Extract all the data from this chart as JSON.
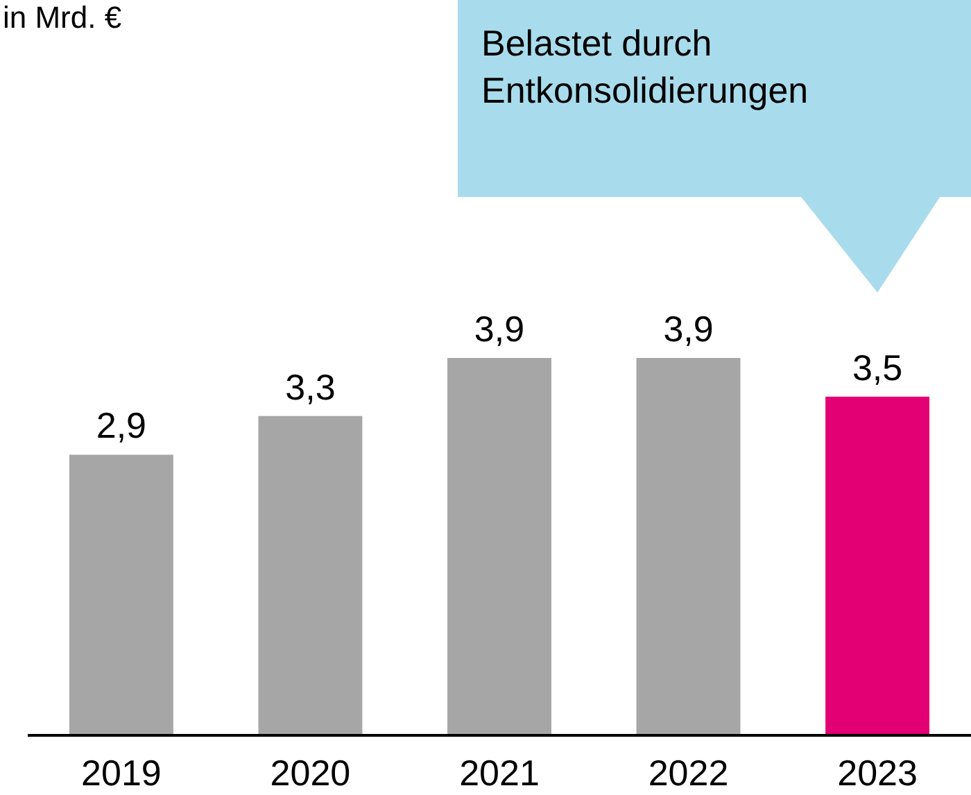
{
  "chart_data": {
    "type": "bar",
    "title": "in Mrd. €",
    "categories": [
      "2019",
      "2020",
      "2021",
      "2022",
      "2023"
    ],
    "values": [
      2.9,
      3.3,
      3.9,
      3.9,
      3.5
    ],
    "colors": [
      "#a6a6a6",
      "#a6a6a6",
      "#a6a6a6",
      "#a6a6a6",
      "#e20074"
    ],
    "value_labels": [
      "2,9",
      "3,3",
      "3,9",
      "3,9",
      "3,5"
    ],
    "annotations": [
      "Belastet durch Entkonsolidierungen"
    ]
  }
}
